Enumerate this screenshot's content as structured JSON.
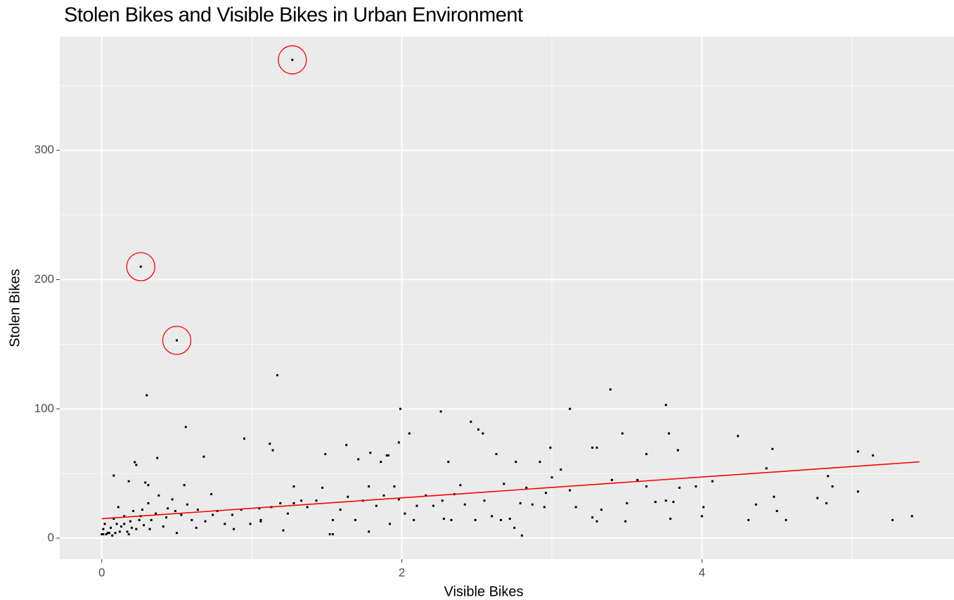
{
  "chart_data": {
    "type": "scatter",
    "title": "Stolen Bikes and Visible Bikes in Urban Environment",
    "x_label": "Visible Bikes",
    "y_label": "Stolen Bikes",
    "xlim": [
      -0.28,
      5.68
    ],
    "ylim": [
      -16.3,
      388
    ],
    "xticks": [
      0,
      2,
      4
    ],
    "yticks": [
      0,
      100,
      200,
      300
    ],
    "grid": true,
    "color": "#000000",
    "panel_color": "#ebebeb",
    "x": [
      0.08,
      0.23,
      0.22,
      0.18,
      0.3,
      0.29,
      0.31,
      0.37,
      0.56,
      0.55,
      0.68,
      0.95,
      1.12,
      1.14,
      1.17,
      1.05,
      1.06,
      1.21,
      1.28,
      1.49,
      1.52,
      1.54,
      1.63,
      1.71,
      1.79,
      1.9,
      1.91,
      1.86,
      1.98,
      1.99,
      2.05,
      2.26,
      2.31,
      2.46,
      2.51,
      2.54,
      2.63,
      2.76,
      2.8,
      2.99,
      3.12,
      3.27,
      3.3,
      3.39,
      3.47,
      3.63,
      3.76,
      3.78,
      3.84,
      4.24,
      4.47,
      5.04,
      5.14,
      5.27,
      5.4,
      5.04,
      4.84,
      4.87,
      4.77,
      4.83,
      4.56,
      4.5,
      4.48,
      4.43,
      4.36,
      4.31,
      4.07,
      4.01,
      4.0,
      3.96,
      3.85,
      3.81,
      3.79,
      3.76,
      3.69,
      3.63,
      3.57,
      3.5,
      3.49,
      3.4,
      3.33,
      3.3,
      3.27,
      3.16,
      3.12,
      3.06,
      3.0,
      2.96,
      2.95,
      2.92,
      2.87,
      2.83,
      2.79,
      2.75,
      2.72,
      2.68,
      2.66,
      2.6,
      2.55,
      2.49,
      2.42,
      2.39,
      2.35,
      2.33,
      2.28,
      2.27,
      2.21,
      2.16,
      2.1,
      2.08,
      2.02,
      1.98,
      1.95,
      1.92,
      1.88,
      1.83,
      1.78,
      1.78,
      1.74,
      1.69,
      1.64,
      1.59,
      1.54,
      1.47,
      1.43,
      1.37,
      1.33,
      1.28,
      1.24,
      1.19,
      1.13,
      1.06,
      0.99,
      0.93,
      0.87,
      0.82,
      0.77,
      0.73,
      0.69,
      0.64,
      0.6,
      0.57,
      0.53,
      0.5,
      0.47,
      0.44,
      0.41,
      0.38,
      0.36,
      0.33,
      0.31,
      0.28,
      0.26,
      0.23,
      0.21,
      0.19,
      0.17,
      0.15,
      0.13,
      0.11,
      0.09,
      0.08,
      0.06,
      0.04,
      0.02,
      0.01,
      0.01,
      0.03,
      0.05,
      0.07,
      0,
      0.1,
      0.12,
      0.15,
      0.18,
      0.2,
      0.25,
      0.27,
      0.32,
      0.43,
      0.49,
      0.63,
      0.74,
      0.88
    ],
    "y": [
      48.4,
      56.6,
      58.8,
      44,
      110.5,
      43,
      41,
      62,
      86,
      41,
      63,
      77,
      73,
      68,
      126,
      23,
      14,
      6,
      40,
      65,
      3,
      3,
      72,
      61,
      66,
      64,
      64,
      59,
      74,
      100,
      81,
      98,
      59,
      90,
      84,
      81,
      65,
      59,
      2,
      70,
      100,
      70,
      70,
      115,
      81,
      65,
      103,
      81,
      68,
      79,
      69,
      67,
      64,
      14,
      17,
      36,
      48,
      40,
      31,
      27,
      14,
      21,
      32,
      54,
      26,
      14,
      44,
      24,
      17,
      40,
      39,
      28,
      15,
      29,
      28,
      40,
      45,
      27,
      13,
      45,
      22,
      13,
      16,
      24,
      37,
      53,
      47,
      35,
      24,
      59,
      26,
      39,
      27,
      8,
      15,
      42,
      14,
      17,
      29,
      14,
      26,
      41,
      34,
      14,
      15,
      29,
      25,
      33,
      25,
      14,
      19,
      30,
      40,
      11,
      33,
      25,
      40,
      5,
      29,
      14,
      32,
      22,
      14,
      39,
      29,
      24,
      29,
      27,
      19,
      27,
      24,
      13,
      11,
      22,
      18,
      11,
      21,
      34,
      13,
      22,
      14,
      26,
      18,
      4,
      30,
      23,
      9,
      33,
      19,
      14,
      27,
      10,
      17,
      7,
      21,
      13,
      5,
      17,
      9,
      24,
      4,
      15,
      8,
      4,
      11,
      3,
      7,
      3,
      4,
      2,
      3,
      11,
      5,
      11,
      3,
      8,
      14,
      22,
      7,
      16,
      21,
      8,
      18,
      7
    ],
    "highlight": {
      "color": "#ff0000",
      "x": [
        1.27,
        0.26,
        0.5
      ],
      "y": [
        370,
        210,
        153
      ]
    },
    "trend": {
      "color": "#ff0000",
      "x": [
        0,
        5.45
      ],
      "y": [
        15,
        59
      ]
    }
  }
}
